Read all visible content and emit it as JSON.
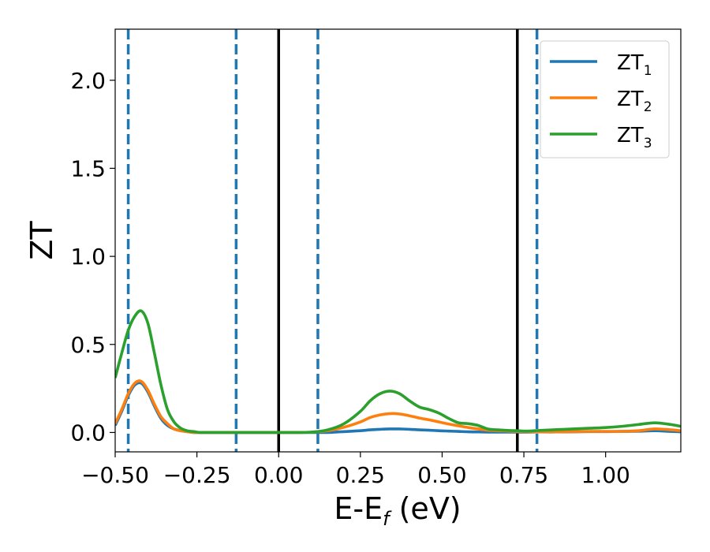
{
  "chart_data": {
    "type": "line",
    "title": "",
    "xlabel": "E-E",
    "xlabel_sub": "f",
    "xlabel_unit": " (eV)",
    "ylabel": "ZT",
    "xlim": [
      -0.5,
      1.23
    ],
    "ylim": [
      -0.11,
      2.29
    ],
    "xticks": [
      -0.5,
      -0.25,
      0.0,
      0.25,
      0.5,
      0.75,
      1.0
    ],
    "xtick_labels": [
      "−0.50",
      "−0.25",
      "0.00",
      "0.25",
      "0.50",
      "0.75",
      "1.00"
    ],
    "yticks": [
      0.0,
      0.5,
      1.0,
      1.5,
      2.0
    ],
    "ytick_labels": [
      "0.0",
      "0.5",
      "1.0",
      "1.5",
      "2.0"
    ],
    "grid": false,
    "legend_position": "top-right",
    "vlines_solid": [
      0.0,
      0.73
    ],
    "vlines_dashed": [
      -0.46,
      -0.13,
      0.12,
      0.79
    ],
    "vline_solid_color": "#000000",
    "vline_dashed_color": "#1f77b4",
    "x": [
      -0.5,
      -0.48,
      -0.46,
      -0.44,
      -0.42,
      -0.4,
      -0.38,
      -0.36,
      -0.34,
      -0.32,
      -0.3,
      -0.28,
      -0.26,
      -0.24,
      -0.22,
      -0.2,
      -0.15,
      -0.1,
      -0.05,
      0.0,
      0.05,
      0.1,
      0.15,
      0.2,
      0.25,
      0.28,
      0.31,
      0.34,
      0.37,
      0.4,
      0.43,
      0.46,
      0.49,
      0.52,
      0.55,
      0.58,
      0.61,
      0.64,
      0.67,
      0.7,
      0.73,
      0.76,
      0.8,
      0.85,
      0.9,
      0.95,
      1.0,
      1.05,
      1.1,
      1.15,
      1.2,
      1.23
    ],
    "series": [
      {
        "name": "ZT",
        "name_sub": "1",
        "color": "#1f77b4",
        "values": [
          0.04,
          0.12,
          0.21,
          0.27,
          0.28,
          0.23,
          0.15,
          0.08,
          0.04,
          0.02,
          0.01,
          0.005,
          0.0,
          0.0,
          0.0,
          0.0,
          0.0,
          0.0,
          0.0,
          0.0,
          0.0,
          0.0,
          0.0,
          0.005,
          0.01,
          0.015,
          0.018,
          0.02,
          0.02,
          0.018,
          0.015,
          0.013,
          0.01,
          0.008,
          0.006,
          0.004,
          0.003,
          0.002,
          0.002,
          0.002,
          0.002,
          0.002,
          0.003,
          0.003,
          0.004,
          0.005,
          0.005,
          0.006,
          0.007,
          0.01,
          0.006,
          0.004
        ]
      },
      {
        "name": "ZT",
        "name_sub": "2",
        "color": "#ff7f0e",
        "values": [
          0.05,
          0.13,
          0.22,
          0.28,
          0.29,
          0.24,
          0.16,
          0.09,
          0.05,
          0.02,
          0.01,
          0.005,
          0.0,
          0.0,
          0.0,
          0.0,
          0.0,
          0.0,
          0.0,
          0.0,
          0.0,
          0.002,
          0.01,
          0.03,
          0.06,
          0.085,
          0.1,
          0.107,
          0.105,
          0.095,
          0.082,
          0.072,
          0.06,
          0.048,
          0.038,
          0.028,
          0.02,
          0.013,
          0.01,
          0.008,
          0.006,
          0.005,
          0.004,
          0.004,
          0.005,
          0.006,
          0.006,
          0.006,
          0.01,
          0.02,
          0.015,
          0.01
        ]
      },
      {
        "name": "ZT",
        "name_sub": "3",
        "color": "#2ca02c",
        "values": [
          0.31,
          0.45,
          0.58,
          0.66,
          0.69,
          0.62,
          0.45,
          0.27,
          0.13,
          0.06,
          0.025,
          0.01,
          0.005,
          0.0,
          0.0,
          0.0,
          0.0,
          0.0,
          0.0,
          0.0,
          0.0,
          0.002,
          0.015,
          0.05,
          0.12,
          0.18,
          0.22,
          0.235,
          0.22,
          0.18,
          0.145,
          0.13,
          0.11,
          0.08,
          0.055,
          0.05,
          0.04,
          0.02,
          0.015,
          0.012,
          0.01,
          0.008,
          0.012,
          0.016,
          0.02,
          0.024,
          0.028,
          0.035,
          0.045,
          0.055,
          0.045,
          0.035
        ]
      }
    ]
  }
}
